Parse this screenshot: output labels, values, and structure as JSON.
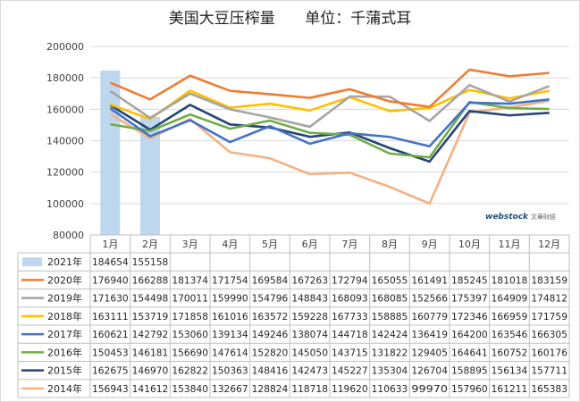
{
  "chart_data": {
    "type": "line",
    "title": "美国大豆压榨量",
    "unit": "单位：千蒲式耳",
    "categories": [
      "1月",
      "2月",
      "3月",
      "4月",
      "5月",
      "6月",
      "7月",
      "8月",
      "9月",
      "10月",
      "11月",
      "12月"
    ],
    "ylim": [
      80000,
      200000
    ],
    "yticks": [
      80000,
      100000,
      120000,
      140000,
      160000,
      180000,
      200000
    ],
    "ytick_labels": [
      "80000",
      "100000",
      "120000",
      "140000",
      "160000",
      "180000",
      "200000"
    ],
    "grid": true,
    "legend": "table-below",
    "series": [
      {
        "name": "2021年",
        "kind": "bar",
        "color": "#bdd7ee",
        "values": [
          184654,
          155158,
          null,
          null,
          null,
          null,
          null,
          null,
          null,
          null,
          null,
          null
        ],
        "labels": [
          "184654",
          "155158",
          "",
          "",
          "",
          "",
          "",
          "",
          "",
          "",
          "",
          ""
        ]
      },
      {
        "name": "2020年",
        "kind": "line",
        "color": "#ed7d31",
        "values": [
          176940,
          166288,
          181374,
          171754,
          169584,
          167263,
          172794,
          165055,
          161491,
          185245,
          181018,
          183159
        ],
        "labels": [
          "176940",
          "166288",
          "181374",
          "171754",
          "169584",
          "167263",
          "172794",
          "165055",
          "161491",
          "185245",
          "181018",
          "183159"
        ]
      },
      {
        "name": "2019年",
        "kind": "line",
        "color": "#a5a5a5",
        "values": [
          171630,
          154498,
          170011,
          159990,
          154796,
          148843,
          168093,
          168085,
          152566,
          175397,
          164909,
          174812
        ],
        "labels": [
          "171630",
          "154498",
          "170011",
          "159990",
          "154796",
          "148843",
          "168093",
          "168085",
          "152566",
          "175397",
          "164909",
          "174812"
        ]
      },
      {
        "name": "2018年",
        "kind": "line",
        "color": "#ffc000",
        "values": [
          163111,
          153719,
          171858,
          161016,
          163572,
          159228,
          167733,
          158885,
          160779,
          172346,
          166959,
          171759
        ],
        "labels": [
          "163111",
          "153719",
          "171858",
          "161016",
          "163572",
          "159228",
          "167733",
          "158885",
          "160779",
          "172346",
          "166959",
          "171759"
        ]
      },
      {
        "name": "2017年",
        "kind": "line",
        "color": "#4472c4",
        "values": [
          160621,
          142792,
          153060,
          139134,
          149246,
          138074,
          144718,
          142424,
          136419,
          164200,
          163546,
          166305
        ],
        "labels": [
          "160621",
          "142792",
          "153060",
          "139134",
          "149246",
          "138074",
          "144718",
          "142424",
          "136419",
          "164200",
          "163546",
          "166305"
        ]
      },
      {
        "name": "2016年",
        "kind": "line",
        "color": "#70ad47",
        "values": [
          150453,
          146181,
          156690,
          147614,
          152820,
          145050,
          143715,
          131822,
          129405,
          164641,
          160752,
          160176
        ],
        "labels": [
          "150453",
          "146181",
          "156690",
          "147614",
          "152820",
          "145050",
          "143715",
          "131822",
          "129405",
          "164641",
          "160752",
          "160176"
        ]
      },
      {
        "name": "2015年",
        "kind": "line",
        "color": "#264478",
        "values": [
          162675,
          146970,
          162822,
          150363,
          148416,
          142473,
          145227,
          135304,
          126704,
          158895,
          156134,
          157711
        ],
        "labels": [
          "162675",
          "146970",
          "162822",
          "150363",
          "148416",
          "142473",
          "145227",
          "135304",
          "126704",
          "158895",
          "156134",
          "157711"
        ]
      },
      {
        "name": "2014年",
        "kind": "line",
        "color": "#f4b183",
        "values": [
          156943,
          141612,
          153840,
          132667,
          128824,
          118718,
          119620,
          110633,
          99970,
          157960,
          161211,
          165383
        ],
        "labels": [
          "156943",
          "141612",
          "153840",
          "132667",
          "128824",
          "118718",
          "119620",
          "110633",
          "99970",
          "157960",
          "161211",
          "165383"
        ]
      }
    ]
  },
  "watermark": {
    "logo_text": "webstock",
    "logo_cn": "文華財經"
  }
}
